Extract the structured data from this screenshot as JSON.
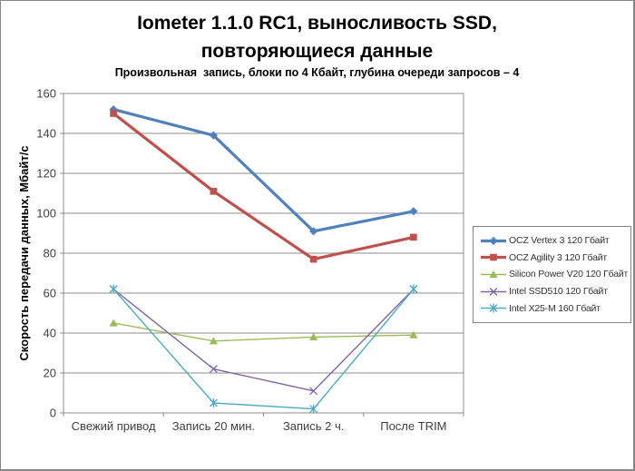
{
  "chart_data": {
    "type": "line",
    "title": "Iometer 1.1.0 RC1, выносливость SSD, повторяющиеся данные",
    "title_line1": "Iometer 1.1.0 RC1, выносливость SSD,",
    "title_line2": "повторяющиеся данные",
    "subtitle": "Произвольная  запись, блоки по 4 Кбайт, глубина очереди запросов – 4",
    "ylabel": "Скорость  передачи данных, Мбайт/с",
    "xlabel": "",
    "categories": [
      "Свежий  привод",
      "Запись 20 мин.",
      "Запись 2 ч.",
      "После TRIM"
    ],
    "yticks": [
      0,
      20,
      40,
      60,
      80,
      100,
      120,
      140,
      160
    ],
    "ylim": [
      0,
      160
    ],
    "grid": true,
    "legend_position": "right",
    "series": [
      {
        "name": "OCZ Vertex 3 120 Гбайт",
        "color": "#4F81BD",
        "marker": "diamond",
        "line_width": 3.2,
        "values": [
          152,
          139,
          91,
          101
        ]
      },
      {
        "name": "OCZ Agility 3 120 Гбайт",
        "color": "#C0504D",
        "marker": "square",
        "line_width": 3.2,
        "values": [
          150,
          111,
          77,
          88
        ]
      },
      {
        "name": "Silicon Power V20 120 Гбайт",
        "color": "#9BBB59",
        "marker": "triangle",
        "line_width": 1.4,
        "values": [
          45,
          36,
          38,
          39
        ]
      },
      {
        "name": "Intel SSD510 120 Гбайт",
        "color": "#8064A2",
        "marker": "x",
        "line_width": 1.4,
        "values": [
          62,
          22,
          11,
          62
        ]
      },
      {
        "name": "Intel X25-M 160 Гбайт",
        "color": "#4BACC6",
        "marker": "star",
        "line_width": 1.4,
        "values": [
          62,
          5,
          2,
          62
        ]
      }
    ],
    "colors": {
      "axis": "#8C8C8C",
      "grid": "#8C8C8C",
      "tick_text": "#3F3F3F",
      "title_text": "#000000",
      "legend_border": "#848484",
      "window_border": "#858585",
      "background": "#FFFFFF"
    }
  }
}
